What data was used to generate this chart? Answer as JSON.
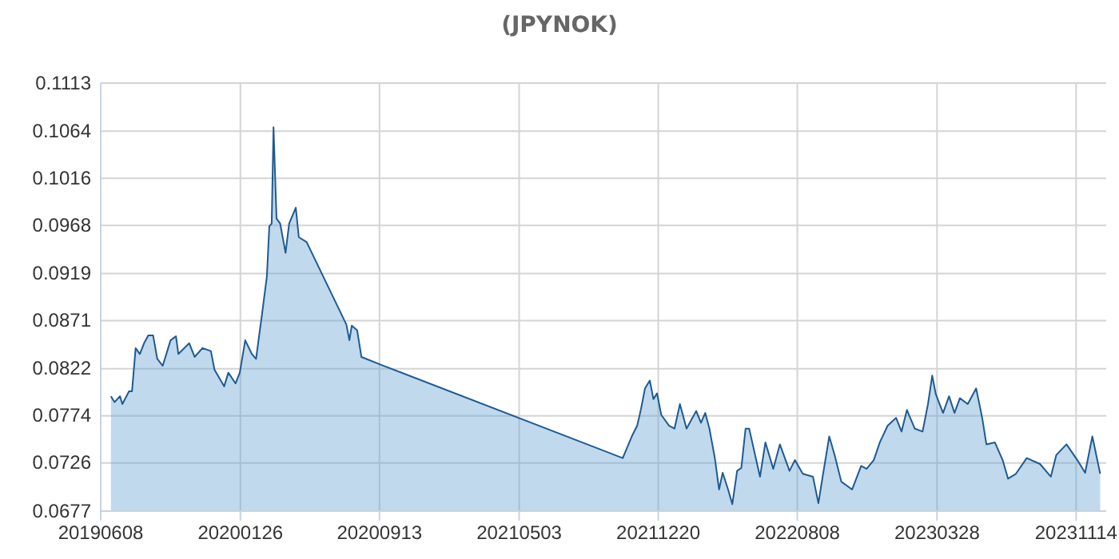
{
  "chart_data": {
    "type": "area",
    "title": "(JPYNOK)",
    "x": [
      "2019-06-25",
      "2019-07-01",
      "2019-07-10",
      "2019-07-14",
      "2019-07-25",
      "2019-07-30",
      "2019-08-05",
      "2019-08-12",
      "2019-08-19",
      "2019-08-26",
      "2019-09-03",
      "2019-09-10",
      "2019-09-19",
      "2019-10-02",
      "2019-10-11",
      "2019-10-15",
      "2019-11-02",
      "2019-11-11",
      "2019-11-24",
      "2019-12-08",
      "2019-12-14",
      "2019-12-30",
      "2020-01-06",
      "2020-01-18",
      "2020-01-25",
      "2020-02-03",
      "2020-02-14",
      "2020-02-21",
      "2020-03-02",
      "2020-03-10",
      "2020-03-14",
      "2020-03-18",
      "2020-03-21",
      "2020-03-26",
      "2020-04-01",
      "2020-04-10",
      "2020-04-16",
      "2020-04-27",
      "2020-05-02",
      "2020-05-15",
      "2020-07-20",
      "2020-07-25",
      "2020-07-29",
      "2020-08-07",
      "2020-08-14",
      "2020-09-20",
      "2021-10-22",
      "2021-11-06",
      "2021-11-15",
      "2021-11-21",
      "2021-11-28",
      "2021-12-06",
      "2021-12-12",
      "2021-12-18",
      "2021-12-25",
      "2022-01-07",
      "2022-01-16",
      "2022-01-25",
      "2022-02-05",
      "2022-02-21",
      "2022-03-01",
      "2022-03-08",
      "2022-03-15",
      "2022-03-24",
      "2022-03-31",
      "2022-04-06",
      "2022-04-15",
      "2022-04-22",
      "2022-04-30",
      "2022-05-07",
      "2022-05-14",
      "2022-05-20",
      "2022-06-07",
      "2022-06-16",
      "2022-06-29",
      "2022-07-10",
      "2022-07-26",
      "2022-08-04",
      "2022-08-17",
      "2022-09-03",
      "2022-09-12",
      "2022-09-19",
      "2022-09-30",
      "2022-10-09",
      "2022-10-20",
      "2022-11-07",
      "2022-11-22",
      "2022-12-01",
      "2022-12-13",
      "2022-12-23",
      "2023-01-05",
      "2023-01-19",
      "2023-01-28",
      "2023-02-06",
      "2023-02-19",
      "2023-03-04",
      "2023-03-13",
      "2023-03-20",
      "2023-03-26",
      "2023-04-07",
      "2023-04-17",
      "2023-04-26",
      "2023-05-05",
      "2023-05-18",
      "2023-06-01",
      "2023-06-11",
      "2023-06-18",
      "2023-07-02",
      "2023-07-15",
      "2023-07-24",
      "2023-08-06",
      "2023-08-24",
      "2023-09-15",
      "2023-10-03",
      "2023-10-12",
      "2023-10-29",
      "2023-11-16",
      "2023-11-29",
      "2023-12-11",
      "2023-12-24"
    ],
    "series": [
      {
        "color": "#1f5a91",
        "values": [
          0.0794,
          0.0788,
          0.0794,
          0.0786,
          0.0799,
          0.0799,
          0.0843,
          0.0837,
          0.0848,
          0.0856,
          0.0856,
          0.0832,
          0.0825,
          0.0851,
          0.0855,
          0.0837,
          0.0848,
          0.0834,
          0.0843,
          0.084,
          0.0821,
          0.0804,
          0.0818,
          0.0807,
          0.0818,
          0.0851,
          0.0837,
          0.0832,
          0.0878,
          0.0916,
          0.0967,
          0.097,
          0.1068,
          0.0975,
          0.097,
          0.094,
          0.097,
          0.0986,
          0.0956,
          0.0951,
          0.0867,
          0.0851,
          0.0866,
          0.0861,
          0.0834,
          0.0825,
          0.0731,
          0.0753,
          0.0764,
          0.078,
          0.0802,
          0.081,
          0.0791,
          0.0797,
          0.0775,
          0.0764,
          0.0761,
          0.0786,
          0.0761,
          0.0779,
          0.0767,
          0.0777,
          0.0761,
          0.0731,
          0.0699,
          0.0716,
          0.0699,
          0.0684,
          0.0718,
          0.0721,
          0.0761,
          0.0761,
          0.0712,
          0.0747,
          0.072,
          0.0745,
          0.0718,
          0.0729,
          0.0715,
          0.0712,
          0.0685,
          0.0712,
          0.0753,
          0.0734,
          0.0707,
          0.0699,
          0.0723,
          0.072,
          0.0729,
          0.0747,
          0.0764,
          0.0772,
          0.0758,
          0.078,
          0.0761,
          0.0758,
          0.0786,
          0.0815,
          0.0796,
          0.0777,
          0.0794,
          0.0777,
          0.0792,
          0.0786,
          0.0802,
          0.0772,
          0.0745,
          0.0747,
          0.0729,
          0.071,
          0.0715,
          0.0731,
          0.0725,
          0.0712,
          0.0734,
          0.0745,
          0.0729,
          0.0716,
          0.0753,
          0.0715
        ]
      }
    ],
    "xlim": [
      "2019-06-08",
      "2024-01-03"
    ],
    "xticks": [
      {
        "value": "2019-06-08",
        "label": "20190608"
      },
      {
        "value": "2020-01-26",
        "label": "20200126"
      },
      {
        "value": "2020-09-13",
        "label": "20200913"
      },
      {
        "value": "2021-05-03",
        "label": "20210503"
      },
      {
        "value": "2021-12-20",
        "label": "20211220"
      },
      {
        "value": "2022-08-08",
        "label": "20220808"
      },
      {
        "value": "2023-03-28",
        "label": "20230328"
      },
      {
        "value": "2023-11-14",
        "label": "20231114"
      }
    ],
    "ylim": [
      0.0677,
      0.1113
    ],
    "yticks": [
      0.0677,
      0.0726,
      0.0774,
      0.0822,
      0.0871,
      0.0919,
      0.0968,
      0.1016,
      0.1064,
      0.1113
    ],
    "grid": true
  }
}
